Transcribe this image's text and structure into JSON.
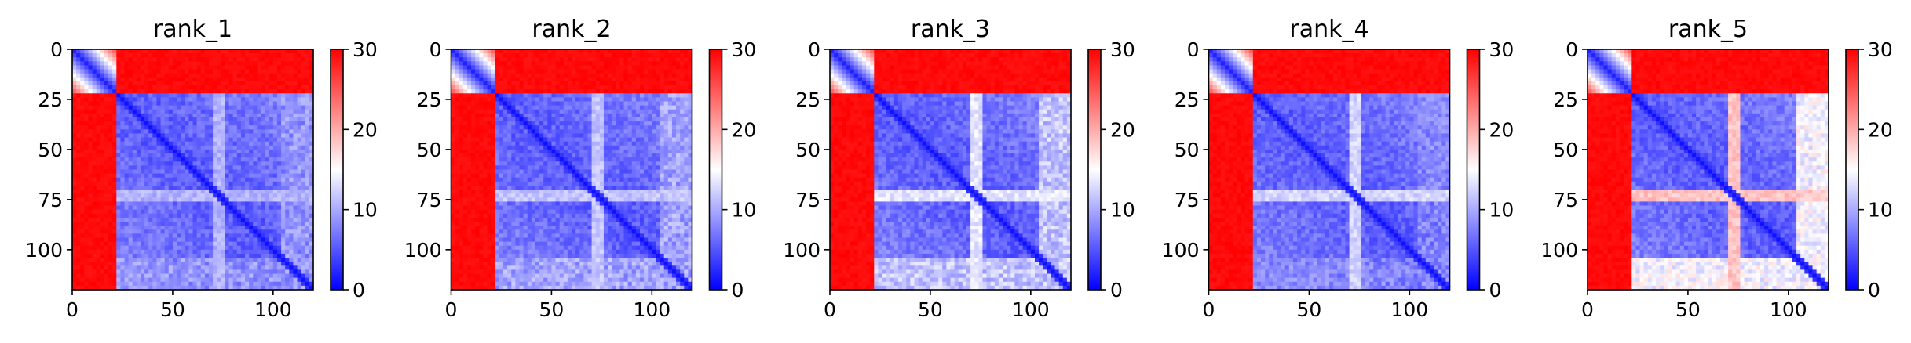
{
  "chart_data": [
    {
      "type": "heatmap",
      "title": "rank_1",
      "xlim": [
        0,
        120
      ],
      "ylim": [
        120,
        0
      ],
      "x_ticks": [
        "0",
        "50",
        "100"
      ],
      "y_ticks": [
        "0",
        "25",
        "50",
        "75",
        "100"
      ],
      "colorbar": {
        "cmap": "bwr",
        "vmin": 0,
        "vmax": 30,
        "ticks": [
          "0",
          "10",
          "20",
          "30"
        ]
      },
      "domain_boundary": 22,
      "inter_domain_value": 30,
      "loop_band": {
        "center": 73,
        "value": 12
      },
      "lower_band_value": 11
    },
    {
      "type": "heatmap",
      "title": "rank_2",
      "xlim": [
        0,
        120
      ],
      "ylim": [
        120,
        0
      ],
      "x_ticks": [
        "0",
        "50",
        "100"
      ],
      "y_ticks": [
        "0",
        "25",
        "50",
        "75",
        "100"
      ],
      "colorbar": {
        "cmap": "bwr",
        "vmin": 0,
        "vmax": 30,
        "ticks": [
          "0",
          "10",
          "20",
          "30"
        ]
      },
      "domain_boundary": 22,
      "inter_domain_value": 30,
      "loop_band": {
        "center": 73,
        "value": 13
      },
      "lower_band_value": 12
    },
    {
      "type": "heatmap",
      "title": "rank_3",
      "xlim": [
        0,
        120
      ],
      "ylim": [
        120,
        0
      ],
      "x_ticks": [
        "0",
        "50",
        "100"
      ],
      "y_ticks": [
        "0",
        "25",
        "50",
        "75",
        "100"
      ],
      "colorbar": {
        "cmap": "bwr",
        "vmin": 0,
        "vmax": 30,
        "ticks": [
          "0",
          "10",
          "20",
          "30"
        ]
      },
      "domain_boundary": 22,
      "inter_domain_value": 30,
      "loop_band": {
        "center": 73,
        "value": 15
      },
      "lower_band_value": 14
    },
    {
      "type": "heatmap",
      "title": "rank_4",
      "xlim": [
        0,
        120
      ],
      "ylim": [
        120,
        0
      ],
      "x_ticks": [
        "0",
        "50",
        "100"
      ],
      "y_ticks": [
        "0",
        "25",
        "50",
        "75",
        "100"
      ],
      "colorbar": {
        "cmap": "bwr",
        "vmin": 0,
        "vmax": 30,
        "ticks": [
          "0",
          "10",
          "20",
          "30"
        ]
      },
      "domain_boundary": 22,
      "inter_domain_value": 30,
      "loop_band": {
        "center": 73,
        "value": 14
      },
      "lower_band_value": 10
    },
    {
      "type": "heatmap",
      "title": "rank_5",
      "xlim": [
        0,
        120
      ],
      "ylim": [
        120,
        0
      ],
      "x_ticks": [
        "0",
        "50",
        "100"
      ],
      "y_ticks": [
        "0",
        "25",
        "50",
        "75",
        "100"
      ],
      "colorbar": {
        "cmap": "bwr",
        "vmin": 0,
        "vmax": 30,
        "ticks": [
          "0",
          "10",
          "20",
          "30"
        ]
      },
      "domain_boundary": 22,
      "inter_domain_value": 30,
      "loop_band": {
        "center": 73,
        "value": 20
      },
      "lower_band_value": 17
    }
  ]
}
